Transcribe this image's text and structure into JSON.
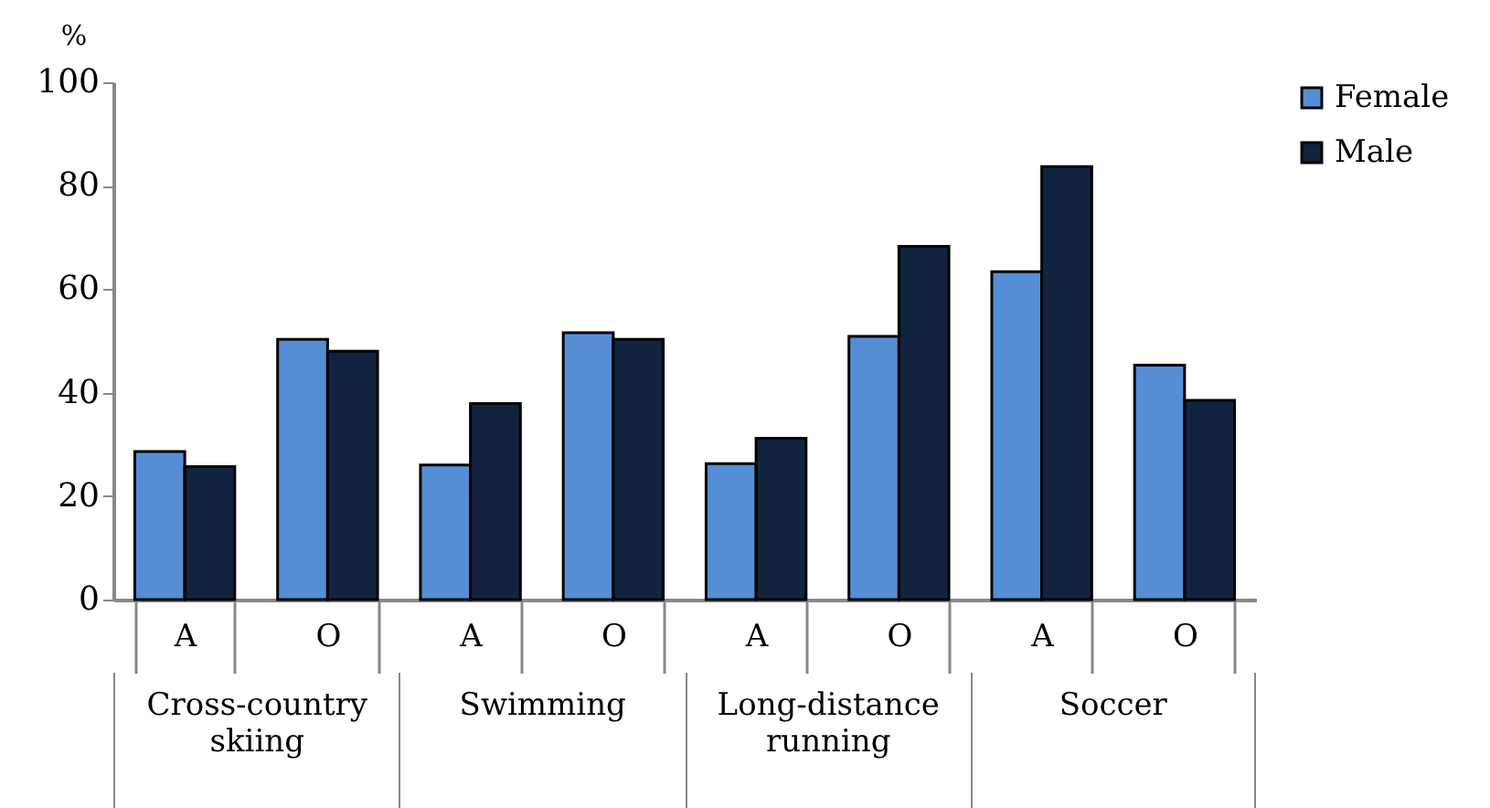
{
  "chart_data": {
    "type": "bar",
    "ylabel": "%",
    "categories": [
      "A",
      "O",
      "A",
      "O",
      "A",
      "O",
      "A",
      "O"
    ],
    "annotations": [
      "Cross-country skiing",
      "Swimming",
      "Long-distance running",
      "Soccer"
    ],
    "series": [
      {
        "name": "Female",
        "color": "#558ed5",
        "values": [
          28.6,
          50.3,
          26,
          51.6,
          26.3,
          50.9,
          63.4,
          45.3
        ]
      },
      {
        "name": "Male",
        "color": "#11233f",
        "values": [
          25.7,
          48,
          37.9,
          50.3,
          31.2,
          68.3,
          83.7,
          38.5
        ]
      }
    ],
    "ylim": [
      0,
      100
    ],
    "yticks": [
      0,
      20,
      40,
      60,
      80,
      100
    ],
    "grid": false,
    "legend": "right"
  }
}
